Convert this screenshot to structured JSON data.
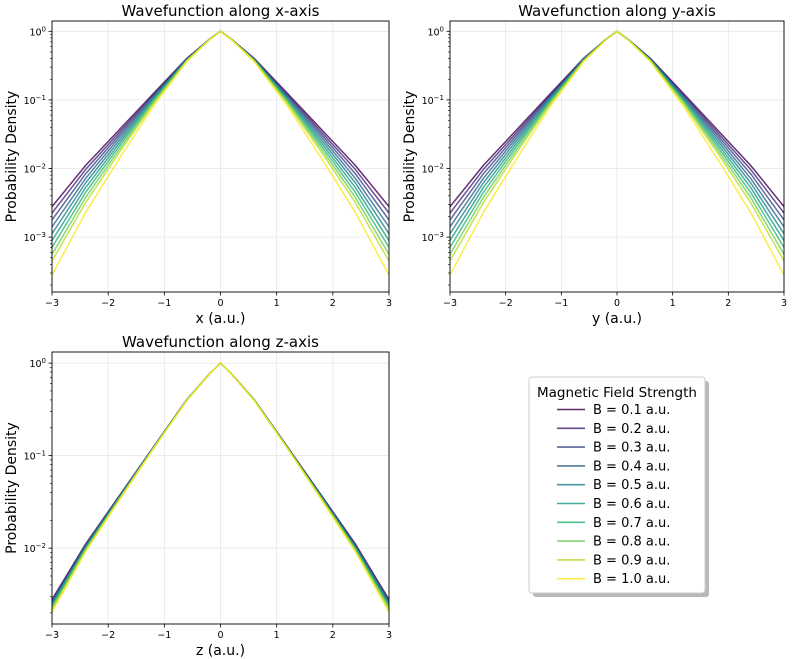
{
  "chart_data": [
    {
      "type": "line",
      "title": "Wavefunction along x-axis",
      "xlabel": "x (a.u.)",
      "ylabel": "Probability Density",
      "xlim": [
        -3,
        3
      ],
      "ylim_log10": [
        -3.8,
        0.15
      ],
      "yscale": "log",
      "xticks": [
        -3,
        -2,
        -1,
        0,
        1,
        2,
        3
      ],
      "xtick_labels": [
        "−3",
        "−2",
        "−1",
        "0",
        "1",
        "2",
        "3"
      ],
      "yticks": [
        -3,
        -2,
        -1,
        0
      ],
      "ytick_labels": [
        {
          "base": "10",
          "exp": "−3"
        },
        {
          "base": "10",
          "exp": "−2"
        },
        {
          "base": "10",
          "exp": "−1"
        },
        {
          "base": "10",
          "exp": "0"
        }
      ],
      "grid": true,
      "x": [
        -3,
        -2.4,
        -1.8,
        -1.2,
        -0.6,
        -0.2,
        0,
        0.2,
        0.6,
        1.2,
        1.8,
        2.4,
        3
      ],
      "series": [
        {
          "name": "B = 0.1 a.u.",
          "values": [
            0.00278,
            0.0111,
            0.0369,
            0.1224,
            0.402,
            0.761,
            1.0,
            0.761,
            0.402,
            0.1224,
            0.0369,
            0.0111,
            0.00278
          ]
        },
        {
          "name": "B = 0.2 a.u.",
          "values": [
            0.00224,
            0.0097,
            0.0338,
            0.118,
            0.398,
            0.76,
            1.0,
            0.76,
            0.398,
            0.118,
            0.0338,
            0.0097,
            0.00224
          ]
        },
        {
          "name": "B = 0.3 a.u.",
          "values": [
            0.00178,
            0.0084,
            0.031,
            0.1135,
            0.394,
            0.759,
            1.0,
            0.759,
            0.394,
            0.1135,
            0.031,
            0.0084,
            0.00178
          ]
        },
        {
          "name": "B = 0.4 a.u.",
          "values": [
            0.00141,
            0.0072,
            0.0284,
            0.109,
            0.39,
            0.758,
            1.0,
            0.758,
            0.39,
            0.109,
            0.0284,
            0.0072,
            0.00141
          ]
        },
        {
          "name": "B = 0.5 a.u.",
          "values": [
            0.00112,
            0.0062,
            0.0258,
            0.1045,
            0.386,
            0.757,
            1.0,
            0.757,
            0.386,
            0.1045,
            0.0258,
            0.0062,
            0.00112
          ]
        },
        {
          "name": "B = 0.6 a.u.",
          "values": [
            0.00089,
            0.0053,
            0.0234,
            0.1,
            0.382,
            0.756,
            1.0,
            0.756,
            0.382,
            0.1,
            0.0234,
            0.0053,
            0.00089
          ]
        },
        {
          "name": "B = 0.7 a.u.",
          "values": [
            0.00071,
            0.0045,
            0.0212,
            0.0955,
            0.378,
            0.755,
            1.0,
            0.755,
            0.378,
            0.0955,
            0.0212,
            0.0045,
            0.00071
          ]
        },
        {
          "name": "B = 0.8 a.u.",
          "values": [
            0.00056,
            0.0038,
            0.0191,
            0.091,
            0.374,
            0.754,
            1.0,
            0.754,
            0.374,
            0.091,
            0.0191,
            0.0038,
            0.00056
          ]
        },
        {
          "name": "B = 0.9 a.u.",
          "values": [
            0.00045,
            0.0032,
            0.0172,
            0.0865,
            0.37,
            0.753,
            1.0,
            0.753,
            0.37,
            0.0865,
            0.0172,
            0.0032,
            0.00045
          ]
        },
        {
          "name": "B = 1.0 a.u.",
          "values": [
            0.00028,
            0.0023,
            0.014,
            0.08,
            0.362,
            0.751,
            1.0,
            0.751,
            0.362,
            0.08,
            0.014,
            0.0023,
            0.00028
          ]
        }
      ]
    },
    {
      "type": "line",
      "title": "Wavefunction along y-axis",
      "xlabel": "y (a.u.)",
      "ylabel": "Probability Density",
      "xlim": [
        -3,
        3
      ],
      "ylim_log10": [
        -3.8,
        0.15
      ],
      "yscale": "log",
      "xticks": [
        -3,
        -2,
        -1,
        0,
        1,
        2,
        3
      ],
      "xtick_labels": [
        "−3",
        "−2",
        "−1",
        "0",
        "1",
        "2",
        "3"
      ],
      "yticks": [
        -3,
        -2,
        -1,
        0
      ],
      "ytick_labels": [
        {
          "base": "10",
          "exp": "−3"
        },
        {
          "base": "10",
          "exp": "−2"
        },
        {
          "base": "10",
          "exp": "−1"
        },
        {
          "base": "10",
          "exp": "0"
        }
      ],
      "grid": true,
      "x": [
        -3,
        -2.4,
        -1.8,
        -1.2,
        -0.6,
        -0.2,
        0,
        0.2,
        0.6,
        1.2,
        1.8,
        2.4,
        3
      ],
      "series": [
        {
          "name": "B = 0.1 a.u.",
          "values": [
            0.00278,
            0.0111,
            0.0369,
            0.1224,
            0.402,
            0.761,
            1.0,
            0.761,
            0.402,
            0.1224,
            0.0369,
            0.0111,
            0.00278
          ]
        },
        {
          "name": "B = 0.2 a.u.",
          "values": [
            0.00224,
            0.0097,
            0.0338,
            0.118,
            0.398,
            0.76,
            1.0,
            0.76,
            0.398,
            0.118,
            0.0338,
            0.0097,
            0.00224
          ]
        },
        {
          "name": "B = 0.3 a.u.",
          "values": [
            0.00178,
            0.0084,
            0.031,
            0.1135,
            0.394,
            0.759,
            1.0,
            0.759,
            0.394,
            0.1135,
            0.031,
            0.0084,
            0.00178
          ]
        },
        {
          "name": "B = 0.4 a.u.",
          "values": [
            0.00141,
            0.0072,
            0.0284,
            0.109,
            0.39,
            0.758,
            1.0,
            0.758,
            0.39,
            0.109,
            0.0284,
            0.0072,
            0.00141
          ]
        },
        {
          "name": "B = 0.5 a.u.",
          "values": [
            0.00112,
            0.0062,
            0.0258,
            0.1045,
            0.386,
            0.757,
            1.0,
            0.757,
            0.386,
            0.1045,
            0.0258,
            0.0062,
            0.00112
          ]
        },
        {
          "name": "B = 0.6 a.u.",
          "values": [
            0.00089,
            0.0053,
            0.0234,
            0.1,
            0.382,
            0.756,
            1.0,
            0.756,
            0.382,
            0.1,
            0.0234,
            0.0053,
            0.00089
          ]
        },
        {
          "name": "B = 0.7 a.u.",
          "values": [
            0.00071,
            0.0045,
            0.0212,
            0.0955,
            0.378,
            0.755,
            1.0,
            0.755,
            0.378,
            0.0955,
            0.0212,
            0.0045,
            0.00071
          ]
        },
        {
          "name": "B = 0.8 a.u.",
          "values": [
            0.00056,
            0.0038,
            0.0191,
            0.091,
            0.374,
            0.754,
            1.0,
            0.754,
            0.374,
            0.091,
            0.0191,
            0.0038,
            0.00056
          ]
        },
        {
          "name": "B = 0.9 a.u.",
          "values": [
            0.00045,
            0.0032,
            0.0172,
            0.0865,
            0.37,
            0.753,
            1.0,
            0.753,
            0.37,
            0.0865,
            0.0172,
            0.0032,
            0.00045
          ]
        },
        {
          "name": "B = 1.0 a.u.",
          "values": [
            0.00028,
            0.0023,
            0.014,
            0.08,
            0.362,
            0.751,
            1.0,
            0.751,
            0.362,
            0.08,
            0.014,
            0.0023,
            0.00028
          ]
        }
      ]
    },
    {
      "type": "line",
      "title": "Wavefunction along z-axis",
      "xlabel": "z (a.u.)",
      "ylabel": "Probability Density",
      "xlim": [
        -3,
        3
      ],
      "ylim_log10": [
        -2.82,
        0.12
      ],
      "yscale": "log",
      "xticks": [
        -3,
        -2,
        -1,
        0,
        1,
        2,
        3
      ],
      "xtick_labels": [
        "−3",
        "−2",
        "−1",
        "0",
        "1",
        "2",
        "3"
      ],
      "yticks": [
        -2,
        -1,
        0
      ],
      "ytick_labels": [
        {
          "base": "10",
          "exp": "−2"
        },
        {
          "base": "10",
          "exp": "−1"
        },
        {
          "base": "10",
          "exp": "0"
        }
      ],
      "grid": true,
      "x": [
        -3,
        -2.4,
        -1.8,
        -1.2,
        -0.6,
        -0.2,
        0,
        0.2,
        0.6,
        1.2,
        1.8,
        2.4,
        3
      ],
      "series": [
        {
          "name": "B = 0.1 a.u.",
          "values": [
            0.00278,
            0.0111,
            0.0369,
            0.1224,
            0.402,
            0.761,
            1.0,
            0.761,
            0.402,
            0.1224,
            0.0369,
            0.0111,
            0.00278
          ]
        },
        {
          "name": "B = 0.2 a.u.",
          "values": [
            0.00272,
            0.0109,
            0.0366,
            0.122,
            0.401,
            0.761,
            1.0,
            0.761,
            0.401,
            0.122,
            0.0366,
            0.0109,
            0.00272
          ]
        },
        {
          "name": "B = 0.3 a.u.",
          "values": [
            0.00265,
            0.0107,
            0.0362,
            0.1215,
            0.401,
            0.761,
            1.0,
            0.761,
            0.401,
            0.1215,
            0.0362,
            0.0107,
            0.00265
          ]
        },
        {
          "name": "B = 0.4 a.u.",
          "values": [
            0.00258,
            0.0105,
            0.0358,
            0.121,
            0.4,
            0.76,
            1.0,
            0.76,
            0.4,
            0.121,
            0.0358,
            0.0105,
            0.00258
          ]
        },
        {
          "name": "B = 0.5 a.u.",
          "values": [
            0.0025,
            0.0103,
            0.0354,
            0.1205,
            0.399,
            0.76,
            1.0,
            0.76,
            0.399,
            0.1205,
            0.0354,
            0.0103,
            0.0025
          ]
        },
        {
          "name": "B = 0.6 a.u.",
          "values": [
            0.00242,
            0.0101,
            0.035,
            0.1199,
            0.398,
            0.76,
            1.0,
            0.76,
            0.398,
            0.1199,
            0.035,
            0.0101,
            0.00242
          ]
        },
        {
          "name": "B = 0.7 a.u.",
          "values": [
            0.00233,
            0.0099,
            0.0346,
            0.1193,
            0.398,
            0.76,
            1.0,
            0.76,
            0.398,
            0.1193,
            0.0346,
            0.0099,
            0.00233
          ]
        },
        {
          "name": "B = 0.8 a.u.",
          "values": [
            0.00224,
            0.0097,
            0.0342,
            0.1187,
            0.397,
            0.759,
            1.0,
            0.759,
            0.397,
            0.1187,
            0.0342,
            0.0097,
            0.00224
          ]
        },
        {
          "name": "B = 0.9 a.u.",
          "values": [
            0.00214,
            0.0094,
            0.0337,
            0.118,
            0.396,
            0.759,
            1.0,
            0.759,
            0.396,
            0.118,
            0.0337,
            0.0094,
            0.00214
          ]
        },
        {
          "name": "B = 1.0 a.u.",
          "values": [
            0.00204,
            0.0092,
            0.0332,
            0.1173,
            0.395,
            0.759,
            1.0,
            0.759,
            0.395,
            0.1173,
            0.0332,
            0.0092,
            0.00204
          ]
        }
      ]
    }
  ],
  "legend": {
    "title": "Magnetic Field Strength",
    "placement": "lower-right panel",
    "entries": [
      {
        "label": "B = 0.1 a.u.",
        "color": "#440154"
      },
      {
        "label": "B = 0.2 a.u.",
        "color": "#482878"
      },
      {
        "label": "B = 0.3 a.u.",
        "color": "#3e4989"
      },
      {
        "label": "B = 0.4 a.u.",
        "color": "#31688e"
      },
      {
        "label": "B = 0.5 a.u.",
        "color": "#26828e"
      },
      {
        "label": "B = 0.6 a.u.",
        "color": "#1f9e89"
      },
      {
        "label": "B = 0.7 a.u.",
        "color": "#35b779"
      },
      {
        "label": "B = 0.8 a.u.",
        "color": "#6ece58"
      },
      {
        "label": "B = 0.9 a.u.",
        "color": "#b5de2b"
      },
      {
        "label": "B = 1.0 a.u.",
        "color": "#fde725"
      }
    ]
  }
}
